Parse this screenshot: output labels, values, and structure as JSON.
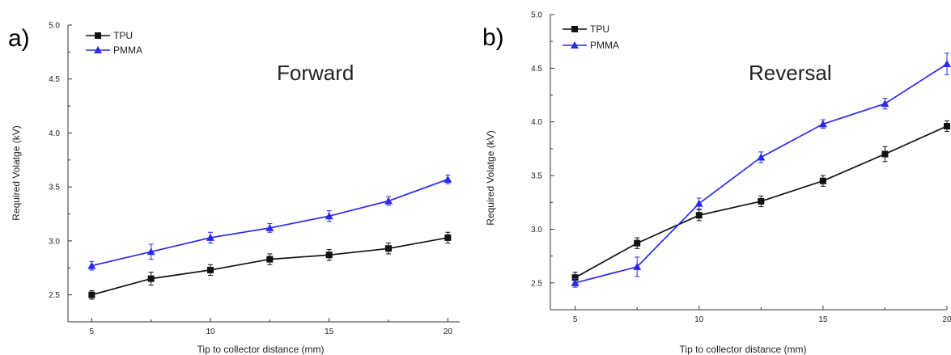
{
  "chart_data": [
    {
      "type": "line",
      "panel_label": "a)",
      "annotation": "Forward",
      "title": "",
      "xlabel": "Tip to collector distance (mm)",
      "ylabel": "Required Volatge (kV)",
      "xlim": [
        4,
        20.5
      ],
      "ylim": [
        2.25,
        5.0
      ],
      "xticks": [
        5,
        10,
        15,
        20
      ],
      "yticks": [
        2.5,
        3.0,
        3.5,
        4.0,
        4.5,
        5.0
      ],
      "ytick_labels": [
        "2.5",
        "3.0",
        "3.5",
        "4.0",
        "4.5",
        "5.0"
      ],
      "grid": false,
      "legend_position": "top-left",
      "x": [
        5,
        7.5,
        10,
        12.5,
        15,
        17.5,
        20
      ],
      "series": [
        {
          "name": "TPU",
          "color": "#111111",
          "marker": "square",
          "values": [
            2.5,
            2.65,
            2.73,
            2.83,
            2.87,
            2.93,
            3.03
          ],
          "errors": [
            0.04,
            0.06,
            0.05,
            0.05,
            0.05,
            0.05,
            0.05
          ]
        },
        {
          "name": "PMMA",
          "color": "#2a2aee",
          "marker": "triangle",
          "values": [
            2.77,
            2.9,
            3.03,
            3.12,
            3.23,
            3.37,
            3.57
          ],
          "errors": [
            0.04,
            0.07,
            0.05,
            0.04,
            0.05,
            0.04,
            0.04
          ]
        }
      ]
    },
    {
      "type": "line",
      "panel_label": "b)",
      "annotation": "Reversal",
      "title": "",
      "xlabel": "Tip to collector distance (mm)",
      "ylabel": "Required Volatge (kV)",
      "xlim": [
        4,
        20
      ],
      "ylim": [
        2.25,
        5.0
      ],
      "xticks": [
        5,
        10,
        15,
        20
      ],
      "yticks": [
        2.5,
        3.0,
        3.5,
        4.0,
        4.5,
        5.0
      ],
      "ytick_labels": [
        "2.5",
        "3.0",
        "3.5",
        "4.0",
        "4.5",
        "5.0"
      ],
      "grid": false,
      "legend_position": "top-left",
      "x": [
        5,
        7.5,
        10,
        12.5,
        15,
        17.5,
        20
      ],
      "series": [
        {
          "name": "TPU",
          "color": "#111111",
          "marker": "square",
          "values": [
            2.55,
            2.87,
            3.13,
            3.26,
            3.45,
            3.7,
            3.96
          ],
          "errors": [
            0.05,
            0.05,
            0.05,
            0.05,
            0.05,
            0.07,
            0.05
          ]
        },
        {
          "name": "PMMA",
          "color": "#2a2aee",
          "marker": "triangle",
          "values": [
            2.5,
            2.65,
            3.24,
            3.67,
            3.98,
            4.17,
            4.54
          ],
          "errors": [
            0.04,
            0.09,
            0.05,
            0.05,
            0.04,
            0.05,
            0.1
          ]
        }
      ]
    }
  ]
}
